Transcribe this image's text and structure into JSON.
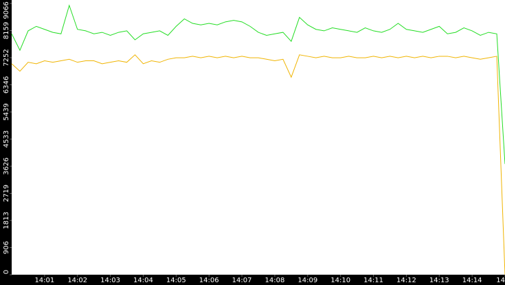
{
  "chart_data": {
    "type": "line",
    "x": [
      840,
      840.25,
      840.5,
      840.75,
      841,
      841.25,
      841.5,
      841.75,
      842,
      842.25,
      842.5,
      842.75,
      843,
      843.25,
      843.5,
      843.75,
      844,
      844.25,
      844.5,
      844.75,
      845,
      845.25,
      845.5,
      845.75,
      846,
      846.25,
      846.5,
      846.75,
      847,
      847.25,
      847.5,
      847.75,
      848,
      848.25,
      848.5,
      848.75,
      849,
      849.25,
      849.5,
      849.75,
      850,
      850.25,
      850.5,
      850.75,
      851,
      851.25,
      851.5,
      851.75,
      852,
      852.25,
      852.5,
      852.75,
      853,
      853.25,
      853.5,
      853.75,
      854,
      854.25,
      854.5,
      854.75,
      855
    ],
    "series": [
      {
        "color": "#22dd22",
        "values": [
          8050,
          7500,
          8150,
          8300,
          8200,
          8100,
          8050,
          9000,
          8200,
          8150,
          8050,
          8100,
          8000,
          8100,
          8150,
          7850,
          8050,
          8100,
          8150,
          8000,
          8300,
          8550,
          8400,
          8350,
          8400,
          8350,
          8450,
          8500,
          8450,
          8300,
          8100,
          8000,
          8050,
          8100,
          7800,
          8600,
          8350,
          8200,
          8150,
          8250,
          8200,
          8150,
          8100,
          8250,
          8150,
          8100,
          8200,
          8400,
          8200,
          8150,
          8100,
          8200,
          8300,
          8050,
          8100,
          8250,
          8150,
          8000,
          8100,
          8050,
          3700
        ]
      },
      {
        "color": "#f0b400",
        "values": [
          7050,
          6800,
          7100,
          7050,
          7150,
          7100,
          7150,
          7200,
          7100,
          7150,
          7150,
          7050,
          7100,
          7150,
          7100,
          7350,
          7050,
          7150,
          7100,
          7200,
          7250,
          7250,
          7300,
          7250,
          7300,
          7250,
          7300,
          7250,
          7300,
          7250,
          7250,
          7200,
          7150,
          7200,
          6600,
          7350,
          7300,
          7250,
          7300,
          7250,
          7250,
          7300,
          7250,
          7250,
          7300,
          7250,
          7300,
          7250,
          7300,
          7250,
          7300,
          7250,
          7300,
          7300,
          7250,
          7300,
          7250,
          7200,
          7250,
          7300,
          0
        ]
      }
    ],
    "xlim": [
      840,
      855
    ],
    "xticks": [
      {
        "value": 841,
        "label": "14:01"
      },
      {
        "value": 842,
        "label": "14:02"
      },
      {
        "value": 843,
        "label": "14:03"
      },
      {
        "value": 844,
        "label": "14:04"
      },
      {
        "value": 845,
        "label": "14:05"
      },
      {
        "value": 846,
        "label": "14:06"
      },
      {
        "value": 847,
        "label": "14:07"
      },
      {
        "value": 848,
        "label": "14:08"
      },
      {
        "value": 849,
        "label": "14:09"
      },
      {
        "value": 850,
        "label": "14:10"
      },
      {
        "value": 851,
        "label": "14:11"
      },
      {
        "value": 852,
        "label": "14:12"
      },
      {
        "value": 853,
        "label": "14:13"
      },
      {
        "value": 854,
        "label": "14:14"
      },
      {
        "value": 855,
        "label": "14"
      }
    ],
    "ylim": [
      0,
      9066
    ],
    "yticks": [
      0,
      906,
      1813,
      2719,
      3626,
      4533,
      5439,
      6346,
      7252,
      8159,
      9066
    ]
  }
}
